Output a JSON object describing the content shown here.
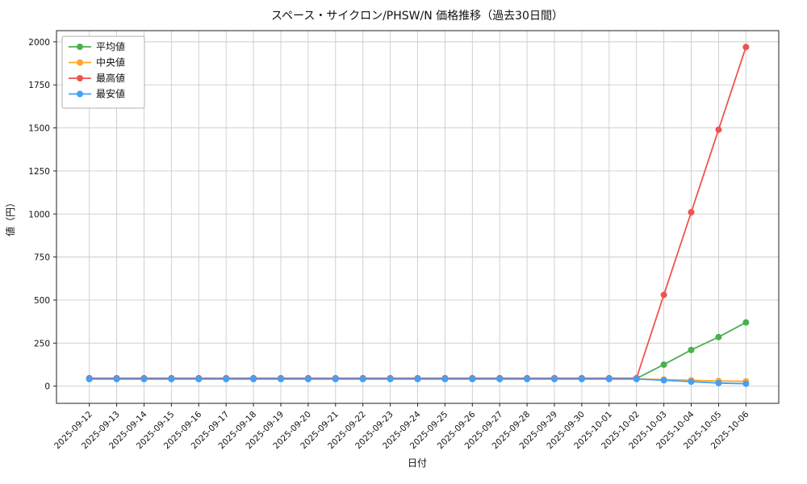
{
  "chart_data": {
    "type": "line",
    "title": "スペース・サイクロン/PHSW/N 価格推移（過去30日間）",
    "xlabel": "日付",
    "ylabel": "値（円）",
    "grid": true,
    "legend_position": "upper left",
    "ylim": [
      -100,
      2065
    ],
    "yticks": [
      0,
      250,
      500,
      750,
      1000,
      1250,
      1500,
      1750,
      2000
    ],
    "categories": [
      "2025-09-12",
      "2025-09-13",
      "2025-09-14",
      "2025-09-15",
      "2025-09-16",
      "2025-09-17",
      "2025-09-18",
      "2025-09-19",
      "2025-09-20",
      "2025-09-21",
      "2025-09-22",
      "2025-09-23",
      "2025-09-24",
      "2025-09-25",
      "2025-09-26",
      "2025-09-27",
      "2025-09-28",
      "2025-09-29",
      "2025-09-30",
      "2025-10-01",
      "2025-10-02",
      "2025-10-03",
      "2025-10-04",
      "2025-10-05",
      "2025-10-06"
    ],
    "series": [
      {
        "key": "avg",
        "name": "平均値",
        "color": "#4caf50",
        "values": [
          44,
          44,
          44,
          44,
          44,
          44,
          44,
          44,
          44,
          44,
          44,
          44,
          44,
          44,
          44,
          44,
          44,
          44,
          44,
          44,
          44,
          125,
          210,
          285,
          370
        ]
      },
      {
        "key": "median",
        "name": "中央値",
        "color": "#ffa726",
        "values": [
          42,
          42,
          42,
          42,
          42,
          42,
          42,
          42,
          42,
          42,
          42,
          42,
          42,
          42,
          42,
          42,
          42,
          42,
          42,
          42,
          42,
          38,
          34,
          30,
          28
        ]
      },
      {
        "key": "max",
        "name": "最高値",
        "color": "#ef5350",
        "values": [
          46,
          46,
          46,
          46,
          46,
          46,
          46,
          46,
          46,
          46,
          46,
          46,
          46,
          46,
          46,
          46,
          46,
          46,
          46,
          46,
          46,
          530,
          1010,
          1490,
          1970
        ]
      },
      {
        "key": "min",
        "name": "最安値",
        "color": "#42a0f5",
        "values": [
          41,
          41,
          41,
          41,
          41,
          41,
          41,
          41,
          41,
          41,
          41,
          41,
          41,
          41,
          41,
          41,
          41,
          41,
          41,
          41,
          41,
          34,
          26,
          18,
          14
        ]
      }
    ]
  }
}
